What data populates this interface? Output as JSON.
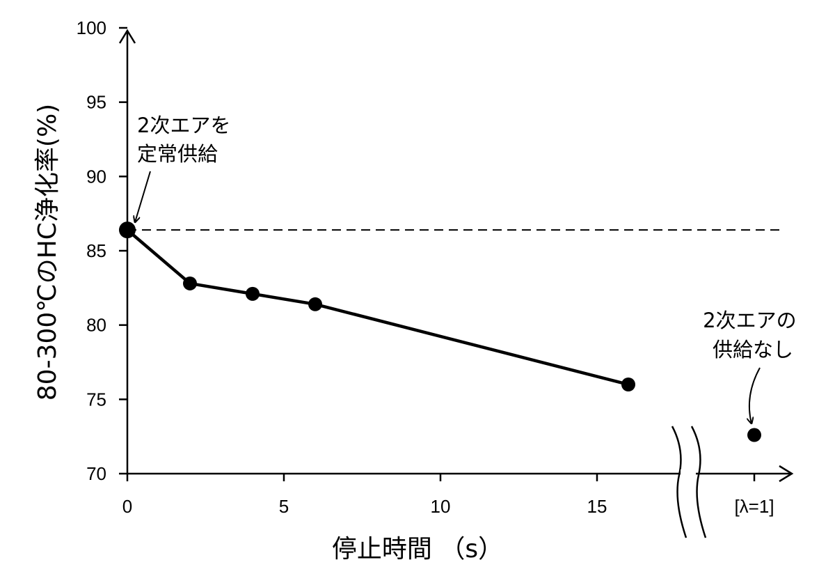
{
  "chart_data": {
    "type": "line",
    "xlabel": "停止時間 （s）",
    "ylabel": "80-300℃のHC浄化率(%)",
    "xlim": [
      0,
      20
    ],
    "ylim": [
      70,
      100
    ],
    "x_ticks": [
      0,
      5,
      10,
      15
    ],
    "y_ticks": [
      70,
      75,
      80,
      85,
      90,
      95,
      100
    ],
    "grid": false,
    "series": [
      {
        "points": [
          {
            "x": 0,
            "y": 86.4
          },
          {
            "x": 2,
            "y": 82.8
          },
          {
            "x": 4,
            "y": 82.1
          },
          {
            "x": 6,
            "y": 81.4
          },
          {
            "x": 16,
            "y": 76.0
          }
        ]
      }
    ],
    "reference_line": {
      "y": 86.4,
      "style": "dashed"
    },
    "separate_point": {
      "y": 72.6,
      "label": "[λ=1]"
    },
    "axis_break": true,
    "annotations": [
      {
        "lines": [
          "2次エアを",
          "定常供給"
        ]
      },
      {
        "lines": [
          "2次エアの",
          "供給なし"
        ]
      }
    ]
  }
}
